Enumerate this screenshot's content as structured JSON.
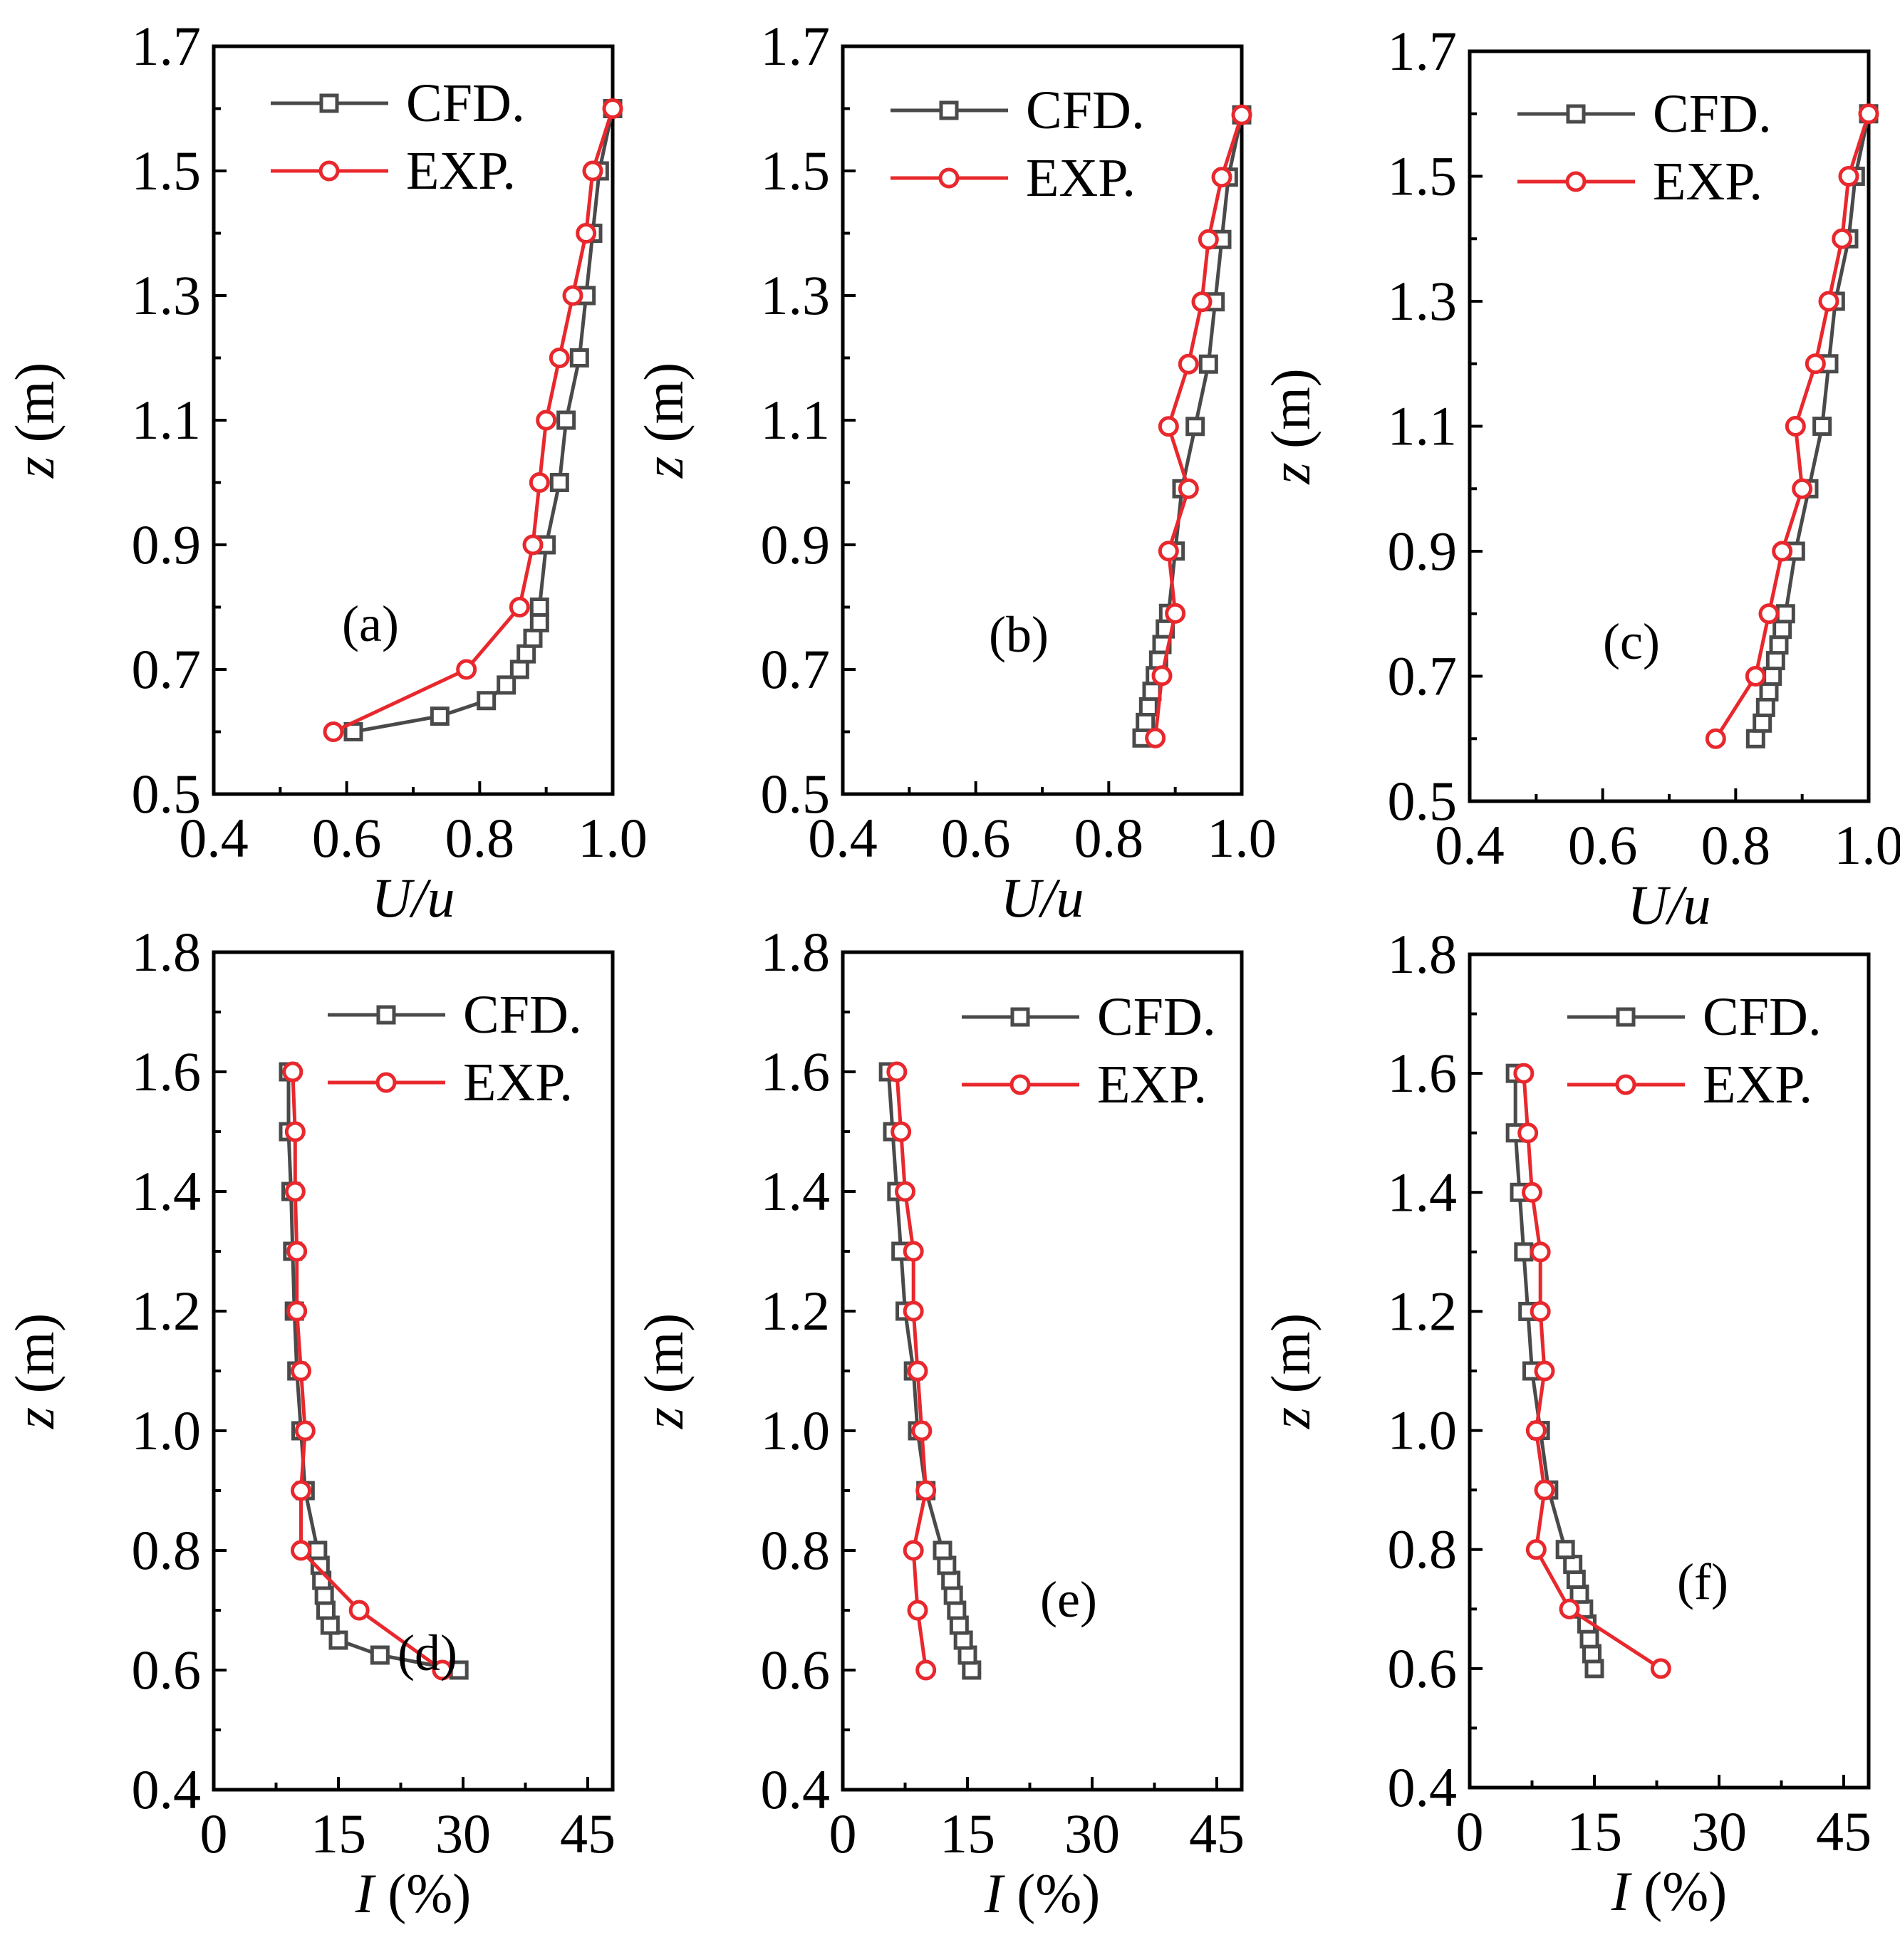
{
  "figure": {
    "legend_cfd": "CFD.",
    "legend_exp": "EXP.",
    "colors": {
      "cfd": "#4a4a4a",
      "exp": "#e8282d"
    }
  },
  "chart_data": [
    {
      "type": "line",
      "panel_label": "(a)",
      "xlabel_italic": "U/u",
      "ylabel_italic": "z",
      "ylabel_rest": " (m)",
      "xlim": [
        0.4,
        1.0
      ],
      "ylim": [
        0.5,
        1.7
      ],
      "xticks": [
        "0.4",
        "0.6",
        "0.8",
        "1.0"
      ],
      "yticks": [
        "0.5",
        "0.7",
        "0.9",
        "1.1",
        "1.3",
        "1.5",
        "1.7"
      ],
      "series": [
        {
          "name": "CFD.",
          "points": [
            [
              0.61,
              0.6
            ],
            [
              0.74,
              0.625
            ],
            [
              0.81,
              0.65
            ],
            [
              0.84,
              0.675
            ],
            [
              0.86,
              0.7
            ],
            [
              0.87,
              0.725
            ],
            [
              0.88,
              0.75
            ],
            [
              0.89,
              0.775
            ],
            [
              0.89,
              0.8
            ],
            [
              0.9,
              0.9
            ],
            [
              0.92,
              1.0
            ],
            [
              0.93,
              1.1
            ],
            [
              0.95,
              1.2
            ],
            [
              0.96,
              1.3
            ],
            [
              0.97,
              1.4
            ],
            [
              0.98,
              1.5
            ],
            [
              1.0,
              1.6
            ]
          ]
        },
        {
          "name": "EXP.",
          "points": [
            [
              0.58,
              0.6
            ],
            [
              0.78,
              0.7
            ],
            [
              0.86,
              0.8
            ],
            [
              0.88,
              0.9
            ],
            [
              0.89,
              1.0
            ],
            [
              0.9,
              1.1
            ],
            [
              0.92,
              1.2
            ],
            [
              0.94,
              1.3
            ],
            [
              0.96,
              1.4
            ],
            [
              0.97,
              1.5
            ],
            [
              1.0,
              1.6
            ]
          ]
        }
      ]
    },
    {
      "type": "line",
      "panel_label": "(b)",
      "xlabel_italic": "U/u",
      "ylabel_italic": "z",
      "ylabel_rest": " (m)",
      "xlim": [
        0.4,
        1.0
      ],
      "ylim": [
        0.5,
        1.7
      ],
      "xticks": [
        "0.4",
        "0.6",
        "0.8",
        "1.0"
      ],
      "yticks": [
        "0.5",
        "0.7",
        "0.9",
        "1.1",
        "1.3",
        "1.5",
        "1.7"
      ],
      "series": [
        {
          "name": "CFD.",
          "points": [
            [
              0.85,
              0.59
            ],
            [
              0.855,
              0.615
            ],
            [
              0.86,
              0.64
            ],
            [
              0.865,
              0.665
            ],
            [
              0.87,
              0.69
            ],
            [
              0.875,
              0.715
            ],
            [
              0.88,
              0.74
            ],
            [
              0.885,
              0.765
            ],
            [
              0.89,
              0.79
            ],
            [
              0.9,
              0.89
            ],
            [
              0.91,
              0.99
            ],
            [
              0.93,
              1.09
            ],
            [
              0.95,
              1.19
            ],
            [
              0.96,
              1.29
            ],
            [
              0.97,
              1.39
            ],
            [
              0.98,
              1.49
            ],
            [
              1.0,
              1.59
            ]
          ]
        },
        {
          "name": "EXP.",
          "points": [
            [
              0.87,
              0.59
            ],
            [
              0.88,
              0.69
            ],
            [
              0.9,
              0.79
            ],
            [
              0.89,
              0.89
            ],
            [
              0.92,
              0.99
            ],
            [
              0.89,
              1.09
            ],
            [
              0.92,
              1.19
            ],
            [
              0.94,
              1.29
            ],
            [
              0.95,
              1.39
            ],
            [
              0.97,
              1.49
            ],
            [
              1.0,
              1.59
            ]
          ]
        }
      ]
    },
    {
      "type": "line",
      "panel_label": "(c)",
      "xlabel_italic": "U/u",
      "ylabel_italic": "z",
      "ylabel_rest": " (m)",
      "xlim": [
        0.4,
        1.0
      ],
      "ylim": [
        0.5,
        1.7
      ],
      "xticks": [
        "0.4",
        "0.6",
        "0.8",
        "1.0"
      ],
      "yticks": [
        "0.5",
        "0.7",
        "0.9",
        "1.1",
        "1.3",
        "1.5",
        "1.7"
      ],
      "series": [
        {
          "name": "CFD.",
          "points": [
            [
              0.83,
              0.6
            ],
            [
              0.84,
              0.625
            ],
            [
              0.845,
              0.65
            ],
            [
              0.85,
              0.675
            ],
            [
              0.855,
              0.7
            ],
            [
              0.86,
              0.725
            ],
            [
              0.865,
              0.75
            ],
            [
              0.87,
              0.775
            ],
            [
              0.875,
              0.8
            ],
            [
              0.89,
              0.9
            ],
            [
              0.91,
              1.0
            ],
            [
              0.93,
              1.1
            ],
            [
              0.94,
              1.2
            ],
            [
              0.95,
              1.3
            ],
            [
              0.97,
              1.4
            ],
            [
              0.98,
              1.5
            ],
            [
              1.0,
              1.6
            ]
          ]
        },
        {
          "name": "EXP.",
          "points": [
            [
              0.77,
              0.6
            ],
            [
              0.83,
              0.7
            ],
            [
              0.85,
              0.8
            ],
            [
              0.87,
              0.9
            ],
            [
              0.9,
              1.0
            ],
            [
              0.89,
              1.1
            ],
            [
              0.92,
              1.2
            ],
            [
              0.94,
              1.3
            ],
            [
              0.96,
              1.4
            ],
            [
              0.97,
              1.5
            ],
            [
              1.0,
              1.6
            ]
          ]
        }
      ]
    },
    {
      "type": "line",
      "panel_label": "(d)",
      "xlabel_italic": "I",
      "xlabel_rest": " (%)",
      "ylabel_italic": "z",
      "ylabel_rest": " (m)",
      "xlim": [
        0,
        48
      ],
      "ylim": [
        0.4,
        1.8
      ],
      "xticks": [
        "0",
        "15",
        "30",
        "45"
      ],
      "yticks": [
        "0.4",
        "0.6",
        "0.8",
        "1.0",
        "1.2",
        "1.4",
        "1.6",
        "1.8"
      ],
      "series": [
        {
          "name": "CFD.",
          "points": [
            [
              29.5,
              0.6
            ],
            [
              20,
              0.625
            ],
            [
              15,
              0.65
            ],
            [
              14,
              0.675
            ],
            [
              13.5,
              0.7
            ],
            [
              13.3,
              0.725
            ],
            [
              13,
              0.75
            ],
            [
              12.8,
              0.775
            ],
            [
              12.5,
              0.8
            ],
            [
              11,
              0.9
            ],
            [
              10.5,
              1.0
            ],
            [
              10,
              1.1
            ],
            [
              9.7,
              1.2
            ],
            [
              9.5,
              1.3
            ],
            [
              9.3,
              1.4
            ],
            [
              9,
              1.5
            ],
            [
              9,
              1.6
            ]
          ]
        },
        {
          "name": "EXP.",
          "points": [
            [
              27.5,
              0.6
            ],
            [
              17.5,
              0.7
            ],
            [
              10.5,
              0.8
            ],
            [
              10.5,
              0.9
            ],
            [
              11,
              1.0
            ],
            [
              10.5,
              1.1
            ],
            [
              10,
              1.2
            ],
            [
              10,
              1.3
            ],
            [
              9.8,
              1.4
            ],
            [
              9.8,
              1.5
            ],
            [
              9.5,
              1.6
            ]
          ]
        }
      ]
    },
    {
      "type": "line",
      "panel_label": "(e)",
      "xlabel_italic": "I",
      "xlabel_rest": " (%)",
      "ylabel_italic": "z",
      "ylabel_rest": " (m)",
      "xlim": [
        0,
        48
      ],
      "ylim": [
        0.4,
        1.8
      ],
      "xticks": [
        "0",
        "15",
        "30",
        "45"
      ],
      "yticks": [
        "0.4",
        "0.6",
        "0.8",
        "1.0",
        "1.2",
        "1.4",
        "1.6",
        "1.8"
      ],
      "series": [
        {
          "name": "CFD.",
          "points": [
            [
              15.5,
              0.6
            ],
            [
              15,
              0.625
            ],
            [
              14.5,
              0.65
            ],
            [
              14,
              0.675
            ],
            [
              13.7,
              0.7
            ],
            [
              13.3,
              0.725
            ],
            [
              13,
              0.75
            ],
            [
              12.5,
              0.775
            ],
            [
              12,
              0.8
            ],
            [
              10,
              0.9
            ],
            [
              9,
              1.0
            ],
            [
              8.5,
              1.1
            ],
            [
              7.5,
              1.2
            ],
            [
              7,
              1.3
            ],
            [
              6.5,
              1.4
            ],
            [
              6,
              1.5
            ],
            [
              5.5,
              1.6
            ]
          ]
        },
        {
          "name": "EXP.",
          "points": [
            [
              10,
              0.6
            ],
            [
              9,
              0.7
            ],
            [
              8.5,
              0.8
            ],
            [
              10,
              0.9
            ],
            [
              9.5,
              1.0
            ],
            [
              9,
              1.1
            ],
            [
              8.5,
              1.2
            ],
            [
              8.5,
              1.3
            ],
            [
              7.5,
              1.4
            ],
            [
              7,
              1.5
            ],
            [
              6.5,
              1.6
            ]
          ]
        }
      ]
    },
    {
      "type": "line",
      "panel_label": "(f)",
      "xlabel_italic": "I",
      "xlabel_rest": " (%)",
      "ylabel_italic": "z",
      "ylabel_rest": " (m)",
      "xlim": [
        0,
        48
      ],
      "ylim": [
        0.4,
        1.8
      ],
      "xticks": [
        "0",
        "15",
        "30",
        "45"
      ],
      "yticks": [
        "0.4",
        "0.6",
        "0.8",
        "1.0",
        "1.2",
        "1.4",
        "1.6",
        "1.8"
      ],
      "series": [
        {
          "name": "CFD.",
          "points": [
            [
              15,
              0.6
            ],
            [
              14.7,
              0.625
            ],
            [
              14.4,
              0.65
            ],
            [
              14.1,
              0.675
            ],
            [
              13.7,
              0.7
            ],
            [
              13.2,
              0.725
            ],
            [
              12.8,
              0.75
            ],
            [
              12.4,
              0.775
            ],
            [
              11.5,
              0.8
            ],
            [
              9.5,
              0.9
            ],
            [
              8.5,
              1.0
            ],
            [
              7.5,
              1.1
            ],
            [
              7,
              1.2
            ],
            [
              6.5,
              1.3
            ],
            [
              6,
              1.4
            ],
            [
              5.5,
              1.5
            ],
            [
              5.5,
              1.6
            ]
          ]
        },
        {
          "name": "EXP.",
          "points": [
            [
              23,
              0.6
            ],
            [
              12,
              0.7
            ],
            [
              8,
              0.8
            ],
            [
              9,
              0.9
            ],
            [
              8,
              1.0
            ],
            [
              9,
              1.1
            ],
            [
              8.5,
              1.2
            ],
            [
              8.5,
              1.3
            ],
            [
              7.5,
              1.4
            ],
            [
              7,
              1.5
            ],
            [
              6.5,
              1.6
            ]
          ]
        }
      ]
    }
  ]
}
